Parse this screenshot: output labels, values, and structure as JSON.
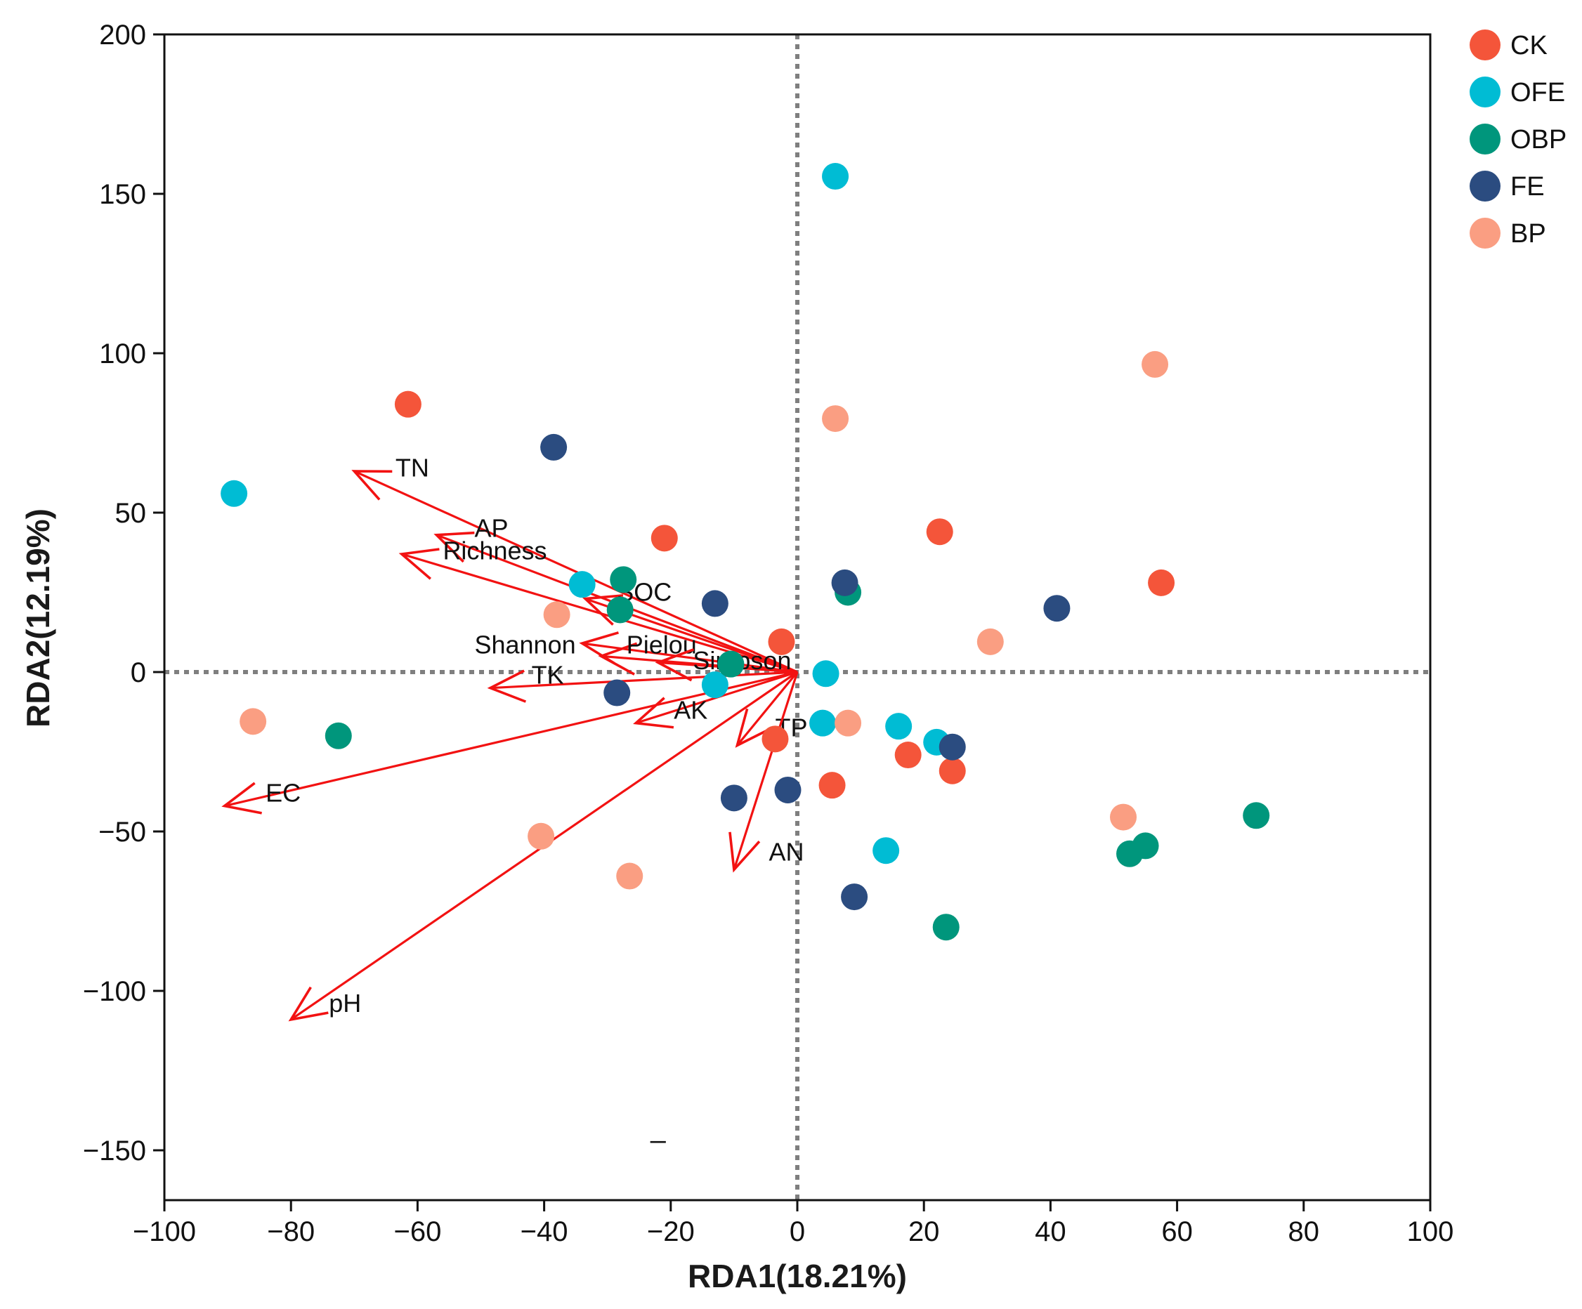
{
  "chart_data": {
    "type": "scatter",
    "subtype": "rda-biplot",
    "xlabel": "RDA1(18.21%)",
    "ylabel": "RDA2(12.19%)",
    "xlim": [
      -100,
      100
    ],
    "ylim": [
      -165,
      200
    ],
    "x_ticks": [
      -100,
      -80,
      -60,
      -40,
      -20,
      0,
      20,
      40,
      60,
      80,
      100
    ],
    "y_ticks": [
      -150,
      -100,
      -50,
      0,
      50,
      100,
      150,
      200
    ],
    "x_tick_labels": [
      "−100",
      "−80",
      "−60",
      "−40",
      "−20",
      "0",
      "20",
      "40",
      "60",
      "80",
      "100"
    ],
    "y_tick_labels": [
      "−150",
      "−100",
      "−50",
      "0",
      "50",
      "100",
      "150",
      "200"
    ],
    "reference_lines": {
      "x": 0,
      "y": 0,
      "style": "dotted",
      "color": "#7f7f7f"
    },
    "legend_position": "outside-top-right",
    "stray_mark": {
      "text": "–",
      "x": -22,
      "y": -147
    },
    "series": [
      {
        "name": "CK",
        "color": "#F4553A",
        "points": [
          [
            -61.5,
            84
          ],
          [
            -21,
            42
          ],
          [
            -2.5,
            9.5
          ],
          [
            22.5,
            44
          ],
          [
            57.5,
            28
          ],
          [
            -3.5,
            -21
          ],
          [
            5.5,
            -35.5
          ],
          [
            17.5,
            -26
          ],
          [
            24.5,
            -31
          ]
        ]
      },
      {
        "name": "OFE",
        "color": "#00BCD4",
        "points": [
          [
            -89,
            56
          ],
          [
            -34,
            27.5
          ],
          [
            6,
            155.5
          ],
          [
            4.5,
            -0.5
          ],
          [
            -13,
            -4
          ],
          [
            4,
            -16
          ],
          [
            16,
            -17
          ],
          [
            22,
            -22
          ],
          [
            14,
            -56
          ]
        ]
      },
      {
        "name": "OBP",
        "color": "#00967C",
        "points": [
          [
            -27.5,
            29
          ],
          [
            -28,
            19.5
          ],
          [
            -10.5,
            2.5
          ],
          [
            8,
            25
          ],
          [
            -72.5,
            -20
          ],
          [
            23.5,
            -80
          ],
          [
            52.5,
            -57
          ],
          [
            55,
            -54.5
          ],
          [
            72.5,
            -45
          ]
        ]
      },
      {
        "name": "FE",
        "color": "#2B4C80",
        "points": [
          [
            -38.5,
            70.5
          ],
          [
            -13,
            21.5
          ],
          [
            7.5,
            28
          ],
          [
            41,
            20
          ],
          [
            -28.5,
            -6.5
          ],
          [
            -10,
            -39.5
          ],
          [
            -1.5,
            -37
          ],
          [
            24.5,
            -23.5
          ],
          [
            9,
            -70.5
          ]
        ]
      },
      {
        "name": "BP",
        "color": "#FA9E82",
        "points": [
          [
            6,
            79.5
          ],
          [
            56.5,
            96.5
          ],
          [
            -38,
            18
          ],
          [
            30.5,
            9.5
          ],
          [
            -86,
            -15.5
          ],
          [
            8,
            -16
          ],
          [
            -40.5,
            -51.5
          ],
          [
            -26.5,
            -64
          ],
          [
            51.5,
            -45.5
          ]
        ]
      }
    ],
    "vectors": [
      {
        "name": "TN",
        "x": -70,
        "y": 63,
        "label_x": -63.5,
        "label_y": 64
      },
      {
        "name": "AP",
        "x": -57,
        "y": 43,
        "label_x": -51,
        "label_y": 45
      },
      {
        "name": "Richness",
        "x": -62.5,
        "y": 37,
        "label_x": -56,
        "label_y": 38
      },
      {
        "name": "SOC",
        "x": -33.5,
        "y": 23,
        "label_x": -28.5,
        "label_y": 25
      },
      {
        "name": "Shannon",
        "x": -34,
        "y": 9,
        "label_x": -51,
        "label_y": 8.5
      },
      {
        "name": "Pielou",
        "x": -31,
        "y": 5,
        "label_x": -27,
        "label_y": 8.5
      },
      {
        "name": "Simpson",
        "x": -22,
        "y": 3,
        "label_x": -16.5,
        "label_y": 3.5
      },
      {
        "name": "TK",
        "x": -48.5,
        "y": -5,
        "label_x": -42,
        "label_y": -1
      },
      {
        "name": "AK",
        "x": -25.5,
        "y": -16,
        "label_x": -19.5,
        "label_y": -12
      },
      {
        "name": "TP",
        "x": -9.5,
        "y": -23,
        "label_x": -3.5,
        "label_y": -17.5
      },
      {
        "name": "EC",
        "x": -90.5,
        "y": -42,
        "label_x": -84,
        "label_y": -38
      },
      {
        "name": "AN",
        "x": -10,
        "y": -62,
        "label_x": -4.5,
        "label_y": -56.5
      },
      {
        "name": "pH",
        "x": -80,
        "y": -109,
        "label_x": -74,
        "label_y": -104
      }
    ]
  }
}
